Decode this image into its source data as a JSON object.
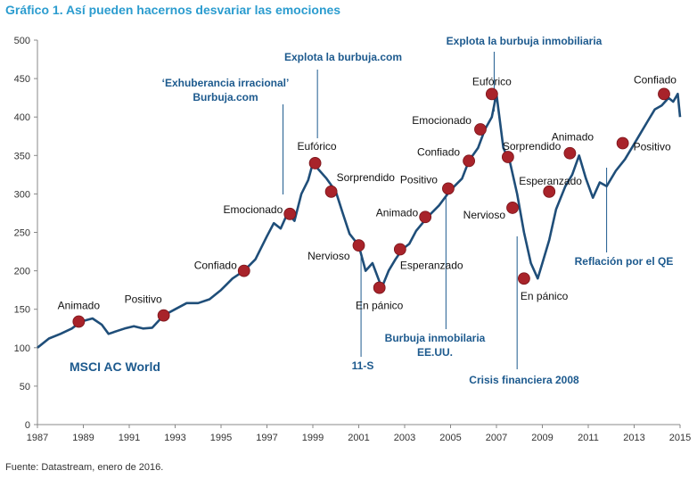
{
  "title": "Gráfico 1. Así pueden hacernos desvariar las emociones",
  "source": "Fuente: Datastream, enero de 2016.",
  "chart_data": {
    "type": "line",
    "xlim": [
      1987,
      2015
    ],
    "ylim": [
      0,
      500
    ],
    "yticks": [
      0,
      50,
      100,
      150,
      200,
      250,
      300,
      350,
      400,
      450,
      500
    ],
    "xticks": [
      1987,
      1989,
      1991,
      1993,
      1995,
      1997,
      1999,
      2001,
      2003,
      2005,
      2007,
      2009,
      2011,
      2013,
      2015
    ],
    "series": [
      {
        "name": "MSCI AC World",
        "color": "#1f4e79",
        "x": [
          1987.0,
          1987.5,
          1988.0,
          1988.5,
          1988.9,
          1989.4,
          1989.8,
          1990.1,
          1990.5,
          1990.8,
          1991.2,
          1991.6,
          1992.0,
          1992.5,
          1993.0,
          1993.5,
          1994.0,
          1994.5,
          1995.0,
          1995.5,
          1996.0,
          1996.5,
          1997.0,
          1997.3,
          1997.6,
          1997.9,
          1998.2,
          1998.5,
          1998.8,
          1999.0,
          1999.3,
          1999.6,
          2000.0,
          2000.3,
          2000.6,
          2001.0,
          2001.3,
          2001.6,
          2002.0,
          2002.3,
          2002.6,
          2002.9,
          2003.2,
          2003.5,
          2004.0,
          2004.5,
          2005.0,
          2005.5,
          2005.8,
          2006.2,
          2006.5,
          2006.8,
          2007.0,
          2007.3,
          2007.6,
          2007.9,
          2008.2,
          2008.5,
          2008.8,
          2009.0,
          2009.3,
          2009.6,
          2010.0,
          2010.3,
          2010.6,
          2010.9,
          2011.2,
          2011.5,
          2011.8,
          2012.2,
          2012.6,
          2013.0,
          2013.3,
          2013.6,
          2013.9,
          2014.2,
          2014.5,
          2014.7,
          2014.9,
          2015.0
        ],
        "y": [
          100,
          112,
          118,
          125,
          134,
          138,
          130,
          118,
          122,
          125,
          128,
          125,
          126,
          142,
          150,
          158,
          158,
          163,
          175,
          190,
          200,
          215,
          245,
          262,
          255,
          275,
          265,
          300,
          318,
          340,
          330,
          320,
          303,
          275,
          248,
          233,
          200,
          210,
          178,
          200,
          215,
          228,
          235,
          252,
          270,
          285,
          305,
          320,
          343,
          360,
          384,
          400,
          430,
          360,
          340,
          300,
          250,
          210,
          190,
          210,
          240,
          280,
          310,
          325,
          350,
          320,
          295,
          315,
          310,
          330,
          345,
          365,
          380,
          395,
          410,
          415,
          425,
          420,
          430,
          400
        ]
      }
    ],
    "emotion_labels": [
      {
        "x": 1988.8,
        "y": 134,
        "label": "Animado"
      },
      {
        "x": 1992.5,
        "y": 142,
        "label": "Positivo"
      },
      {
        "x": 1996.0,
        "y": 200,
        "label": "Confiado"
      },
      {
        "x": 1998.0,
        "y": 274,
        "label": "Emocionado"
      },
      {
        "x": 1999.1,
        "y": 340,
        "label": "Eufórico"
      },
      {
        "x": 1999.8,
        "y": 303,
        "label": "Sorprendido"
      },
      {
        "x": 2001.0,
        "y": 233,
        "label": "Nervioso"
      },
      {
        "x": 2001.9,
        "y": 178,
        "label": "En pánico"
      },
      {
        "x": 2002.8,
        "y": 228,
        "label": "Esperanzado"
      },
      {
        "x": 2003.9,
        "y": 270,
        "label": "Animado"
      },
      {
        "x": 2004.9,
        "y": 307,
        "label": "Positivo"
      },
      {
        "x": 2005.8,
        "y": 343,
        "label": "Confiado"
      },
      {
        "x": 2006.3,
        "y": 384,
        "label": "Emocionado"
      },
      {
        "x": 2006.8,
        "y": 430,
        "label": "Eufórico"
      },
      {
        "x": 2007.5,
        "y": 348,
        "label": "Sorprendido"
      },
      {
        "x": 2007.7,
        "y": 282,
        "label": "Nervioso"
      },
      {
        "x": 2008.2,
        "y": 190,
        "label": "En pánico"
      },
      {
        "x": 2009.3,
        "y": 303,
        "label": "Esperanzado"
      },
      {
        "x": 2010.2,
        "y": 353,
        "label": "Animado"
      },
      {
        "x": 2012.5,
        "y": 366,
        "label": "Positivo"
      },
      {
        "x": 2014.3,
        "y": 430,
        "label": "Confiado"
      }
    ],
    "event_annotations": [
      {
        "lines": [
          "‘Exhuberancia irracional’",
          "Burbuja.com"
        ],
        "x": 1997.7
      },
      {
        "lines": [
          "Explota  la  burbuja.com"
        ],
        "x": 1999.2
      },
      {
        "lines": [
          "11-S"
        ],
        "x": 2001.1
      },
      {
        "lines": [
          "Burbuja inmobilaria",
          "EE.UU."
        ],
        "x": 2004.8
      },
      {
        "lines": [
          "Explota la burbuja  inmobiliaria"
        ],
        "x": 2006.9
      },
      {
        "lines": [
          "Crisis financiera 2008"
        ],
        "x": 2007.9
      },
      {
        "lines": [
          "Reflación  por  el QE"
        ],
        "x": 2011.8
      }
    ]
  }
}
